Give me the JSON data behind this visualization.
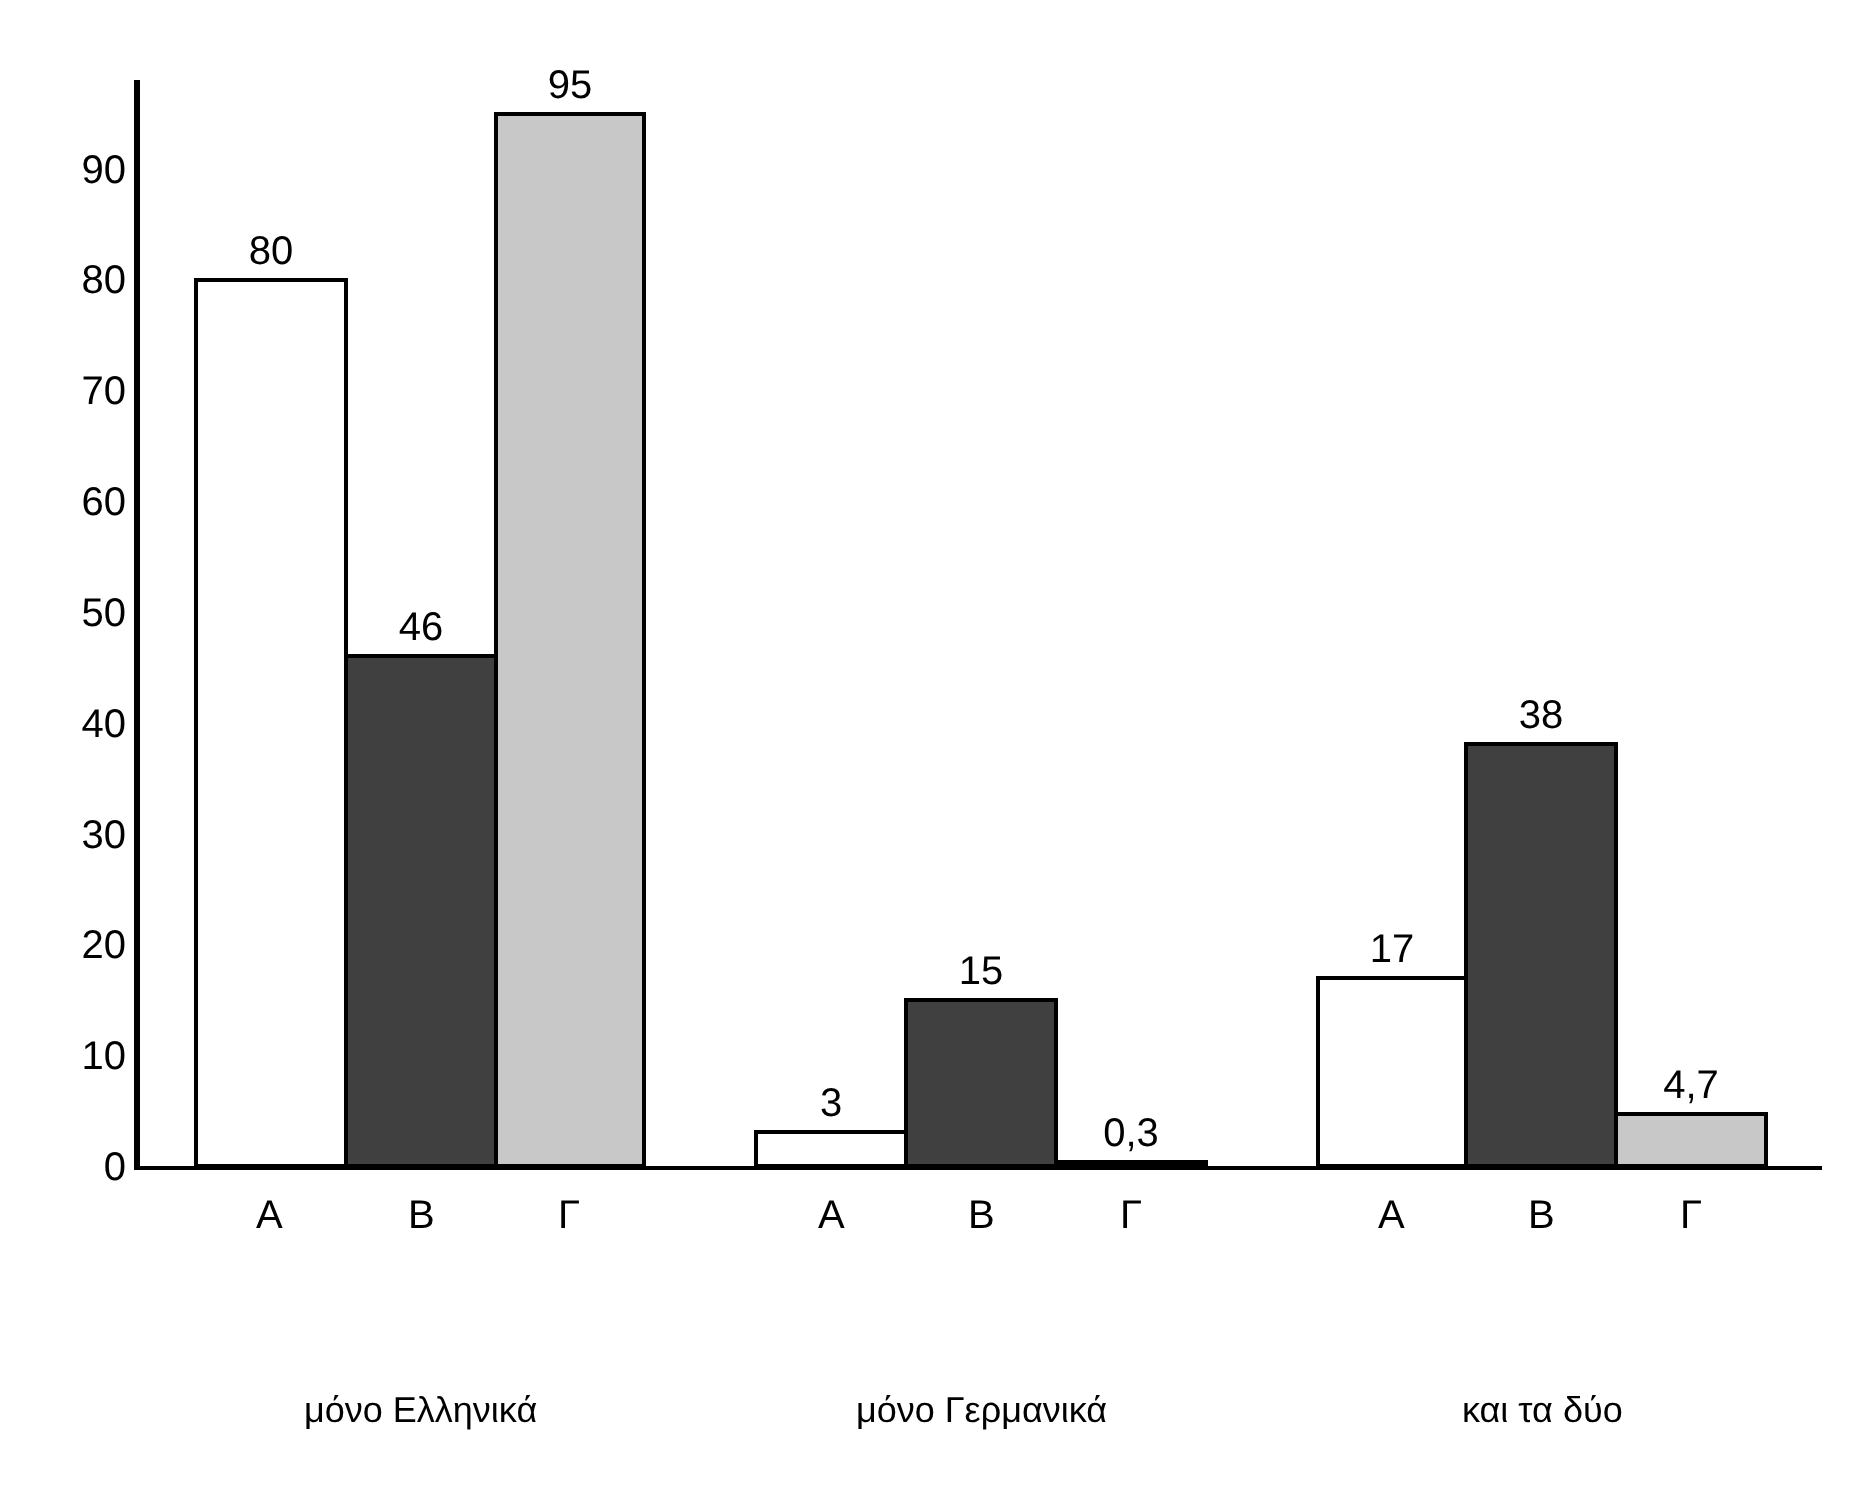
{
  "chart_data": {
    "type": "bar",
    "categories": [
      "μόνο Ελληνικά",
      "μόνο Γερμανικά",
      "και τα δύο"
    ],
    "series": [
      {
        "name": "A",
        "color": "#ffffff",
        "values": [
          80,
          3,
          17
        ],
        "value_labels": [
          "80",
          "3",
          "17"
        ]
      },
      {
        "name": "B",
        "color": "#404040",
        "values": [
          46,
          15,
          38
        ],
        "value_labels": [
          "46",
          "15",
          "38"
        ]
      },
      {
        "name": "Γ",
        "color": "#c8c8c8",
        "values": [
          95,
          0.3,
          4.7
        ],
        "value_labels": [
          "95",
          "0,3",
          "4,7"
        ]
      }
    ],
    "ylim": [
      0,
      98
    ],
    "yticks": [
      0,
      10,
      20,
      30,
      40,
      50,
      60,
      70,
      80,
      90
    ],
    "legend": false
  }
}
